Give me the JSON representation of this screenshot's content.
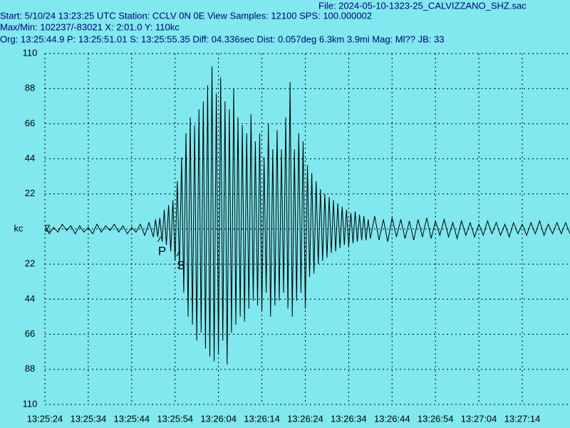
{
  "chart_data": {
    "type": "line",
    "file": "File: 2024-05-10-1323-25_CALVIZZANO_SHZ.sac",
    "title": "Start: 5/10/24 13:23:25 UTC Station: CCLV 0N 0E View Samples: 12100  SPS: 100.000002",
    "subtitle": "Max/Min: 102237/-83021 X: 2:01.0 Y: 110kc",
    "info": "Org: 13:25:44.9 P: 13:25:51.01 S: 13:25:55.35 Diff: 04.336sec Dist: 0.057deg 6.3km 3.9mi  Mag: Ml?? JB: 33",
    "y_label": "kc",
    "xlim": [
      0,
      121
    ],
    "ylim": [
      -110,
      110
    ],
    "xticks": [
      {
        "value": 0,
        "label": "13:25:24"
      },
      {
        "value": 10,
        "label": "13:25:34"
      },
      {
        "value": 20,
        "label": "13:25:44"
      },
      {
        "value": 30,
        "label": "13:25:54"
      },
      {
        "value": 40,
        "label": "13:26:04"
      },
      {
        "value": 50,
        "label": "13:26:14"
      },
      {
        "value": 60,
        "label": "13:26:24"
      },
      {
        "value": 70,
        "label": "13:26:34"
      },
      {
        "value": 80,
        "label": "13:26:44"
      },
      {
        "value": 90,
        "label": "13:26:54"
      },
      {
        "value": 100,
        "label": "13:27:04"
      },
      {
        "value": 110,
        "label": "13:27:14"
      }
    ],
    "yticks": [
      110,
      88,
      66,
      44,
      22,
      {
        "value": 0,
        "label": "Z"
      },
      {
        "value": -22,
        "label": "22"
      },
      {
        "value": -44,
        "label": "44"
      },
      {
        "value": -66,
        "label": "66"
      },
      {
        "value": -88,
        "label": "88"
      },
      {
        "value": -110,
        "label": "110"
      }
    ],
    "grid": true,
    "phases": [
      {
        "label": "P",
        "x": 27.01
      },
      {
        "label": "S",
        "x": 31.35
      }
    ],
    "x": [
      0,
      1,
      2,
      3,
      4,
      5,
      6,
      7,
      8,
      9,
      10,
      11,
      12,
      13,
      14,
      15,
      16,
      17,
      18,
      19,
      20,
      21,
      22,
      23,
      24,
      25,
      25.5,
      26,
      26.5,
      27,
      27.5,
      28,
      28.5,
      29,
      29.5,
      30,
      30.5,
      31,
      31.5,
      32,
      32.5,
      33,
      33.5,
      34,
      34.5,
      35,
      35.5,
      36,
      36.5,
      37,
      37.5,
      38,
      38.5,
      39,
      39.5,
      40,
      40.5,
      41,
      41.5,
      42,
      42.5,
      43,
      43.5,
      44,
      44.5,
      45,
      45.5,
      46,
      46.5,
      47,
      47.5,
      48,
      48.5,
      49,
      49.5,
      50,
      50.5,
      51,
      51.5,
      52,
      52.5,
      53,
      53.5,
      54,
      54.5,
      55,
      55.5,
      56,
      56.5,
      57,
      57.5,
      58,
      58.5,
      59,
      59.5,
      60,
      60.5,
      61,
      61.5,
      62,
      62.5,
      63,
      63.5,
      64,
      64.5,
      65,
      65.5,
      66,
      66.5,
      67,
      67.5,
      68,
      68.5,
      69,
      69.5,
      70,
      70.5,
      71,
      71.5,
      72,
      72.5,
      73,
      73.5,
      74,
      74.5,
      75,
      76,
      77,
      78,
      79,
      80,
      81,
      82,
      83,
      84,
      85,
      86,
      87,
      88,
      89,
      90,
      91,
      92,
      93,
      94,
      95,
      96,
      97,
      98,
      99,
      100,
      101,
      102,
      103,
      104,
      105,
      106,
      107,
      108,
      109,
      110,
      111,
      112,
      113,
      114,
      115,
      116,
      117,
      118,
      119,
      120,
      121
    ],
    "series": [
      {
        "name": "SHZ",
        "color": "#000000",
        "values": [
          2,
          -3,
          1,
          -2,
          3,
          -1,
          2,
          -3,
          2,
          -2,
          1,
          -3,
          3,
          -2,
          2,
          -1,
          3,
          -2,
          2,
          -3,
          1,
          -2,
          3,
          -4,
          4,
          -5,
          6,
          -5,
          7,
          -8,
          12,
          -10,
          15,
          -14,
          18,
          -20,
          30,
          -25,
          45,
          -40,
          60,
          -55,
          70,
          -60,
          65,
          -70,
          75,
          -65,
          80,
          -75,
          90,
          -80,
          102,
          -83,
          85,
          -78,
          95,
          -70,
          80,
          -85,
          75,
          -65,
          88,
          -60,
          70,
          -55,
          65,
          -58,
          60,
          -50,
          72,
          -45,
          55,
          -48,
          60,
          -52,
          45,
          -40,
          66,
          -55,
          50,
          -48,
          62,
          -45,
          50,
          -40,
          70,
          -50,
          92,
          -55,
          50,
          -45,
          60,
          -40,
          55,
          -50,
          40,
          -30,
          35,
          -28,
          30,
          -22,
          25,
          -20,
          22,
          -18,
          20,
          -15,
          18,
          -14,
          16,
          -12,
          14,
          -10,
          12,
          -11,
          10,
          -9,
          11,
          -8,
          9,
          -7,
          8,
          -7,
          6,
          -6,
          8,
          -7,
          6,
          -8,
          7,
          -5,
          6,
          -6,
          5,
          -7,
          6,
          -5,
          7,
          -6,
          5,
          -4,
          6,
          -5,
          4,
          -6,
          5,
          -4,
          4,
          -5,
          3,
          -4,
          5,
          -3,
          4,
          -4,
          3,
          -5,
          4,
          -3,
          3,
          -4,
          4,
          -3,
          5,
          -4,
          3,
          -3,
          4,
          -3,
          4,
          -3
        ]
      }
    ]
  }
}
